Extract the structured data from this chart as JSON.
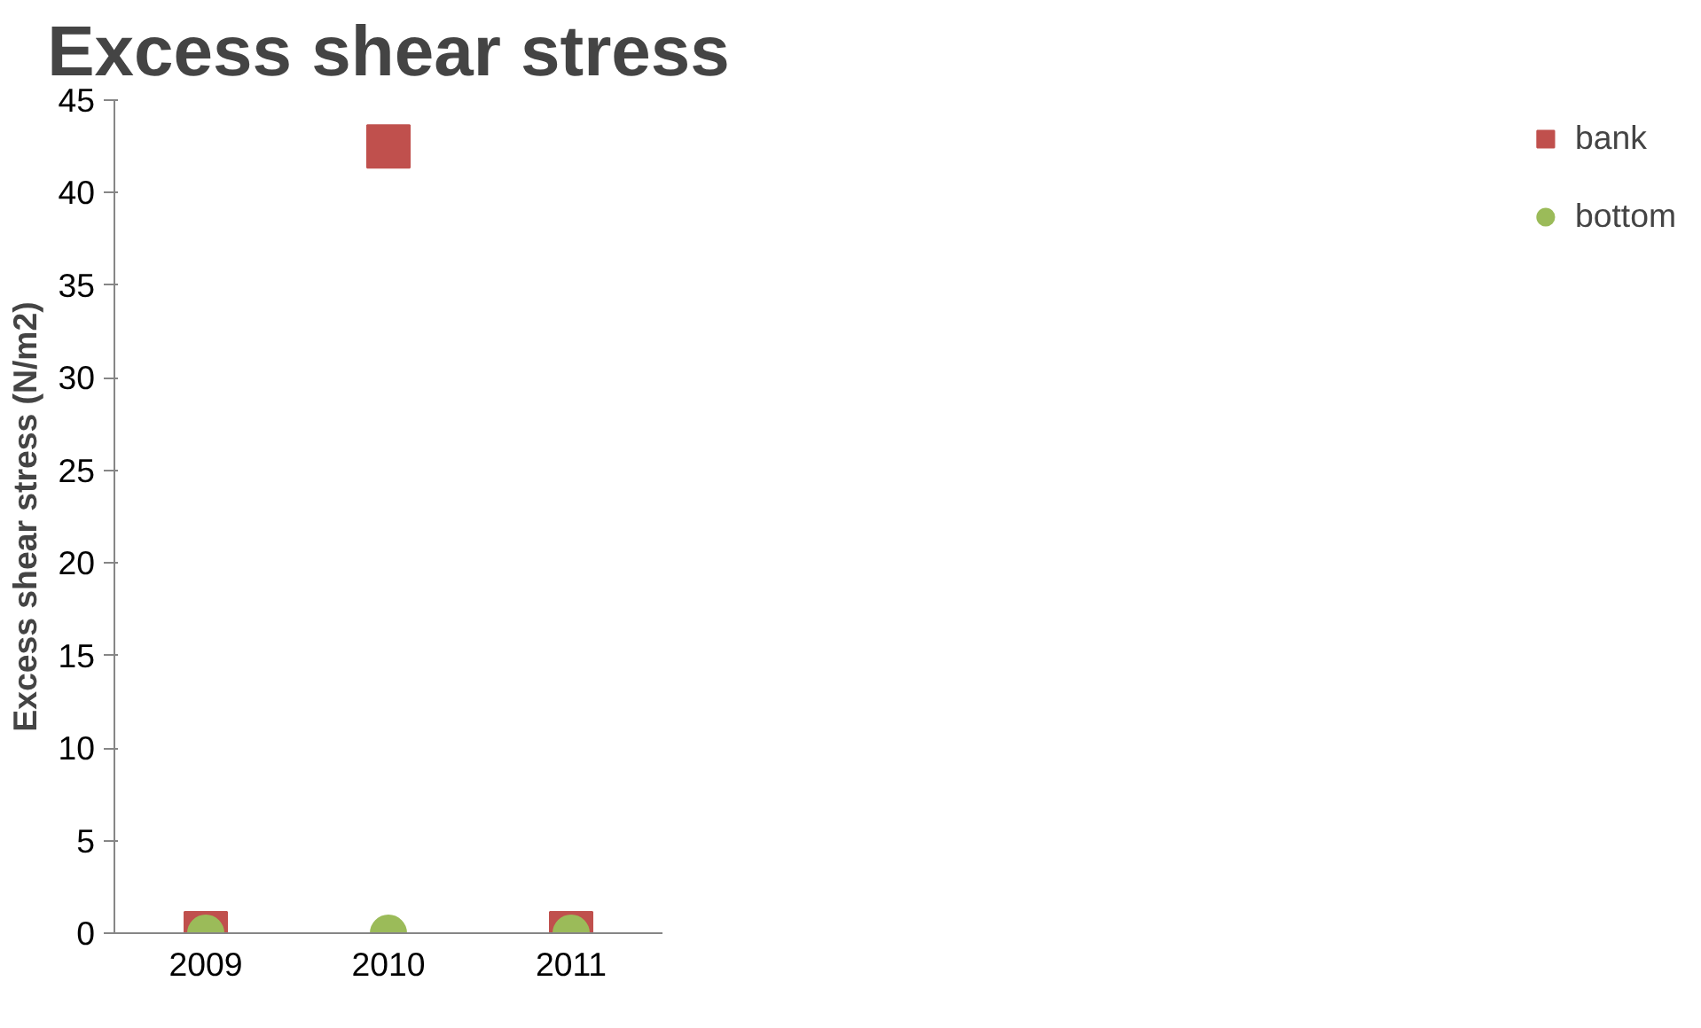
{
  "chart_data": {
    "type": "scatter",
    "title": "Excess shear stress",
    "ylabel": "Excess shear stress (N/m2)",
    "categories": [
      "2009",
      "2010",
      "2011"
    ],
    "series": [
      {
        "name": "bank",
        "color": "#c0504d",
        "marker": "square",
        "values": [
          0,
          42.5,
          0
        ]
      },
      {
        "name": "bottom",
        "color": "#9bbb59",
        "marker": "circle",
        "values": [
          0,
          0,
          0
        ]
      }
    ],
    "ylim": [
      0,
      45
    ],
    "yticks": [
      0,
      5,
      10,
      15,
      20,
      25,
      30,
      35,
      40,
      45
    ],
    "grid": false,
    "legend": "right"
  }
}
